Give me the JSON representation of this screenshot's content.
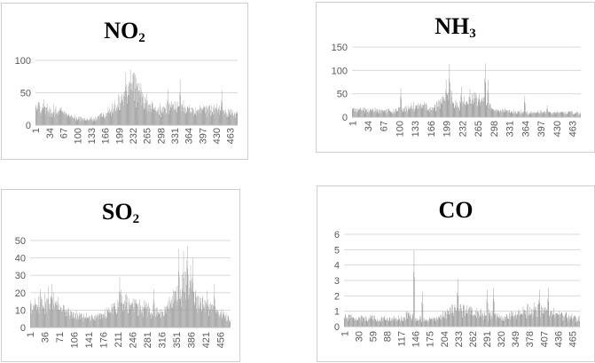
{
  "chart_data": [
    {
      "type": "bar",
      "title_main": "NO",
      "title_sub": "2",
      "ylim": [
        0,
        100
      ],
      "yticks": [
        "0",
        "50",
        "100"
      ],
      "xticks": [
        "1",
        "34",
        "67",
        "100",
        "133",
        "166",
        "199",
        "232",
        "265",
        "298",
        "331",
        "364",
        "397",
        "430",
        "463"
      ],
      "n": 480,
      "profile": [
        [
          1,
          35
        ],
        [
          20,
          30
        ],
        [
          60,
          22
        ],
        [
          100,
          12
        ],
        [
          140,
          10
        ],
        [
          165,
          18
        ],
        [
          190,
          30
        ],
        [
          210,
          55
        ],
        [
          230,
          68
        ],
        [
          245,
          60
        ],
        [
          265,
          38
        ],
        [
          290,
          25
        ],
        [
          320,
          30
        ],
        [
          340,
          34
        ],
        [
          380,
          25
        ],
        [
          430,
          28
        ],
        [
          480,
          18
        ]
      ],
      "peaks": [
        [
          215,
          82
        ],
        [
          226,
          86
        ],
        [
          238,
          78
        ],
        [
          251,
          64
        ],
        [
          315,
          55
        ],
        [
          344,
          70
        ],
        [
          443,
          54
        ]
      ],
      "grid": true,
      "legend": "none"
    },
    {
      "type": "bar",
      "title_main": "NH",
      "title_sub": "3",
      "ylim": [
        0,
        150
      ],
      "yticks": [
        "0",
        "50",
        "100",
        "150"
      ],
      "xticks": [
        "1",
        "34",
        "67",
        "100",
        "133",
        "166",
        "199",
        "232",
        "265",
        "298",
        "331",
        "364",
        "397",
        "430",
        "463"
      ],
      "n": 480,
      "profile": [
        [
          1,
          18
        ],
        [
          40,
          17
        ],
        [
          90,
          16
        ],
        [
          120,
          24
        ],
        [
          150,
          28
        ],
        [
          170,
          18
        ],
        [
          185,
          35
        ],
        [
          205,
          60
        ],
        [
          215,
          32
        ],
        [
          240,
          35
        ],
        [
          260,
          45
        ],
        [
          280,
          40
        ],
        [
          295,
          18
        ],
        [
          330,
          13
        ],
        [
          380,
          11
        ],
        [
          430,
          12
        ],
        [
          480,
          10
        ]
      ],
      "peaks": [
        [
          103,
          62
        ],
        [
          198,
          80
        ],
        [
          205,
          114
        ],
        [
          230,
          65
        ],
        [
          248,
          60
        ],
        [
          280,
          115
        ],
        [
          286,
          80
        ],
        [
          363,
          45
        ],
        [
          410,
          25
        ]
      ],
      "grid": true,
      "legend": "none"
    },
    {
      "type": "bar",
      "title_main": "SO",
      "title_sub": "2",
      "ylim": [
        0,
        50
      ],
      "yticks": [
        "0",
        "10",
        "20",
        "30",
        "40",
        "50"
      ],
      "xticks": [
        "1",
        "36",
        "71",
        "106",
        "141",
        "176",
        "211",
        "246",
        "281",
        "316",
        "351",
        "386",
        "421",
        "456"
      ],
      "n": 480,
      "profile": [
        [
          1,
          13
        ],
        [
          30,
          16
        ],
        [
          60,
          17
        ],
        [
          90,
          9
        ],
        [
          140,
          7
        ],
        [
          175,
          8
        ],
        [
          200,
          13
        ],
        [
          220,
          18
        ],
        [
          250,
          14
        ],
        [
          280,
          12
        ],
        [
          320,
          10
        ],
        [
          345,
          20
        ],
        [
          370,
          27
        ],
        [
          385,
          29
        ],
        [
          400,
          18
        ],
        [
          440,
          12
        ],
        [
          480,
          5
        ]
      ],
      "peaks": [
        [
          25,
          22
        ],
        [
          52,
          25
        ],
        [
          215,
          29
        ],
        [
          297,
          22
        ],
        [
          357,
          45
        ],
        [
          368,
          44
        ],
        [
          378,
          47
        ],
        [
          390,
          40
        ],
        [
          442,
          25
        ]
      ],
      "grid": true,
      "legend": "none"
    },
    {
      "type": "bar",
      "title_main": "CO",
      "title_sub": "",
      "ylim": [
        0,
        6
      ],
      "yticks": [
        "0",
        "1",
        "2",
        "3",
        "4",
        "5",
        "6"
      ],
      "xticks": [
        "1",
        "30",
        "59",
        "88",
        "117",
        "146",
        "175",
        "204",
        "233",
        "262",
        "291",
        "320",
        "349",
        "378",
        "407",
        "436",
        "465"
      ],
      "n": 480,
      "profile": [
        [
          1,
          0.7
        ],
        [
          60,
          0.65
        ],
        [
          100,
          0.55
        ],
        [
          120,
          0.6
        ],
        [
          130,
          1.0
        ],
        [
          150,
          0.6
        ],
        [
          175,
          0.55
        ],
        [
          200,
          0.8
        ],
        [
          230,
          1.35
        ],
        [
          260,
          1.05
        ],
        [
          290,
          0.9
        ],
        [
          320,
          0.7
        ],
        [
          350,
          0.9
        ],
        [
          380,
          1.25
        ],
        [
          410,
          1.2
        ],
        [
          440,
          0.8
        ],
        [
          480,
          0.6
        ]
      ],
      "peaks": [
        [
          143,
          4.95
        ],
        [
          160,
          2.25
        ],
        [
          232,
          3.1
        ],
        [
          292,
          2.4
        ],
        [
          305,
          2.5
        ],
        [
          398,
          2.4
        ],
        [
          416,
          2.5
        ]
      ],
      "grid": true,
      "legend": "none"
    }
  ]
}
